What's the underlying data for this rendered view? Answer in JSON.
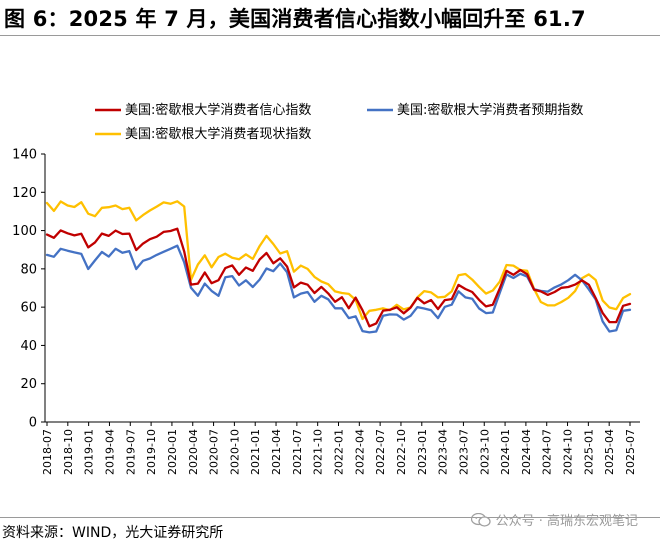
{
  "header": {
    "title": "图 6：2025 年 7 月，美国消费者信心指数小幅回升至 61.7"
  },
  "footer": {
    "source": "资料来源：WIND，光大证券研究所",
    "watermark": "公众号 · 高瑞东宏观笔记",
    "watermark_icon": "wechat-icon"
  },
  "chart_data": {
    "type": "line",
    "title": "",
    "xlabel": "",
    "ylabel": "",
    "ylim": [
      0,
      140
    ],
    "yticks": [
      0,
      20,
      40,
      60,
      80,
      100,
      120,
      140
    ],
    "grid": false,
    "legend_position": "top-left",
    "x_tick_labels": [
      "2018-07",
      "2018-10",
      "2019-01",
      "2019-04",
      "2019-07",
      "2019-10",
      "2020-01",
      "2020-04",
      "2020-07",
      "2020-10",
      "2021-01",
      "2021-04",
      "2021-07",
      "2021-10",
      "2022-01",
      "2022-04",
      "2022-07",
      "2022-10",
      "2023-01",
      "2023-04",
      "2023-07",
      "2023-10",
      "2024-01",
      "2024-04",
      "2024-07",
      "2024-10",
      "2025-01",
      "2025-04",
      "2025-07"
    ],
    "x_start": "2018-07",
    "x_end": "2025-07",
    "series": [
      {
        "name": "美国:密歇根大学消费者信心指数",
        "color": "#c00000",
        "values": [
          97.9,
          96.2,
          100.1,
          98.6,
          97.5,
          98.3,
          91.2,
          93.8,
          98.4,
          97.2,
          100.0,
          98.2,
          98.4,
          89.8,
          93.2,
          95.5,
          96.8,
          99.3,
          99.8,
          101.0,
          89.1,
          71.8,
          72.3,
          78.1,
          72.5,
          74.1,
          80.4,
          81.8,
          76.9,
          80.7,
          79.0,
          84.9,
          88.3,
          82.9,
          85.5,
          81.2,
          70.3,
          72.8,
          71.7,
          67.4,
          70.6,
          67.2,
          62.8,
          65.2,
          59.4,
          65.0,
          58.4,
          50.0,
          51.5,
          58.2,
          58.6,
          59.9,
          56.8,
          59.7,
          64.9,
          62.0,
          63.7,
          59.0,
          63.7,
          64.2,
          71.6,
          69.5,
          67.9,
          63.8,
          60.4,
          61.3,
          69.7,
          79.0,
          76.9,
          79.4,
          77.2,
          69.1,
          68.2,
          66.4,
          67.9,
          70.1,
          70.5,
          71.8,
          74.0,
          71.7,
          64.7,
          57.0,
          52.2,
          52.2,
          60.7,
          61.7
        ]
      },
      {
        "name": "美国:密歇根大学消费者预期指数",
        "color": "#4472c4",
        "values": [
          87.3,
          86.3,
          90.5,
          89.5,
          88.6,
          87.8,
          79.9,
          84.4,
          88.8,
          86.4,
          90.5,
          88.4,
          89.3,
          79.9,
          84.2,
          85.4,
          87.3,
          88.9,
          90.5,
          92.1,
          83.4,
          70.1,
          65.9,
          72.3,
          68.5,
          65.9,
          75.6,
          76.2,
          71.3,
          74.0,
          70.5,
          74.4,
          80.2,
          78.8,
          82.8,
          78.2,
          65.1,
          67.1,
          67.9,
          62.8,
          65.9,
          64.1,
          59.4,
          59.4,
          54.3,
          55.2,
          47.5,
          46.8,
          47.3,
          55.5,
          56.2,
          56.1,
          53.5,
          55.4,
          60.0,
          59.3,
          58.4,
          54.3,
          60.2,
          61.3,
          68.3,
          65.1,
          64.4,
          59.3,
          56.9,
          57.2,
          67.4,
          77.1,
          75.2,
          77.4,
          76.0,
          69.3,
          68.5,
          68.1,
          70.3,
          71.9,
          74.1,
          76.9,
          74.0,
          69.3,
          64.0,
          52.6,
          47.3,
          47.9,
          58.1,
          58.6
        ]
      },
      {
        "name": "美国:密歇根大学消费者现状指数",
        "color": "#ffc000",
        "values": [
          114.4,
          110.3,
          115.2,
          113.1,
          112.3,
          114.8,
          108.8,
          107.5,
          111.9,
          112.2,
          113.1,
          111.2,
          111.9,
          105.3,
          108.1,
          110.5,
          112.5,
          114.7,
          114.0,
          115.3,
          112.6,
          74.3,
          82.3,
          87.1,
          80.8,
          86.2,
          87.9,
          85.8,
          85.0,
          87.6,
          85.2,
          91.9,
          97.2,
          93.0,
          88.0,
          89.2,
          78.5,
          81.7,
          80.0,
          75.8,
          73.4,
          72.0,
          68.2,
          67.4,
          66.9,
          63.8,
          53.8,
          58.1,
          58.6,
          59.4,
          58.4,
          61.2,
          58.8,
          59.8,
          65.1,
          68.4,
          67.7,
          65.1,
          65.4,
          68.2,
          76.7,
          77.3,
          74.4,
          70.6,
          67.1,
          68.7,
          73.3,
          82.0,
          81.7,
          79.4,
          79.0,
          69.6,
          62.7,
          60.9,
          60.9,
          62.7,
          64.9,
          68.4,
          75.1,
          77.1,
          74.2,
          63.5,
          59.8,
          58.9,
          64.8,
          66.8
        ]
      }
    ]
  }
}
